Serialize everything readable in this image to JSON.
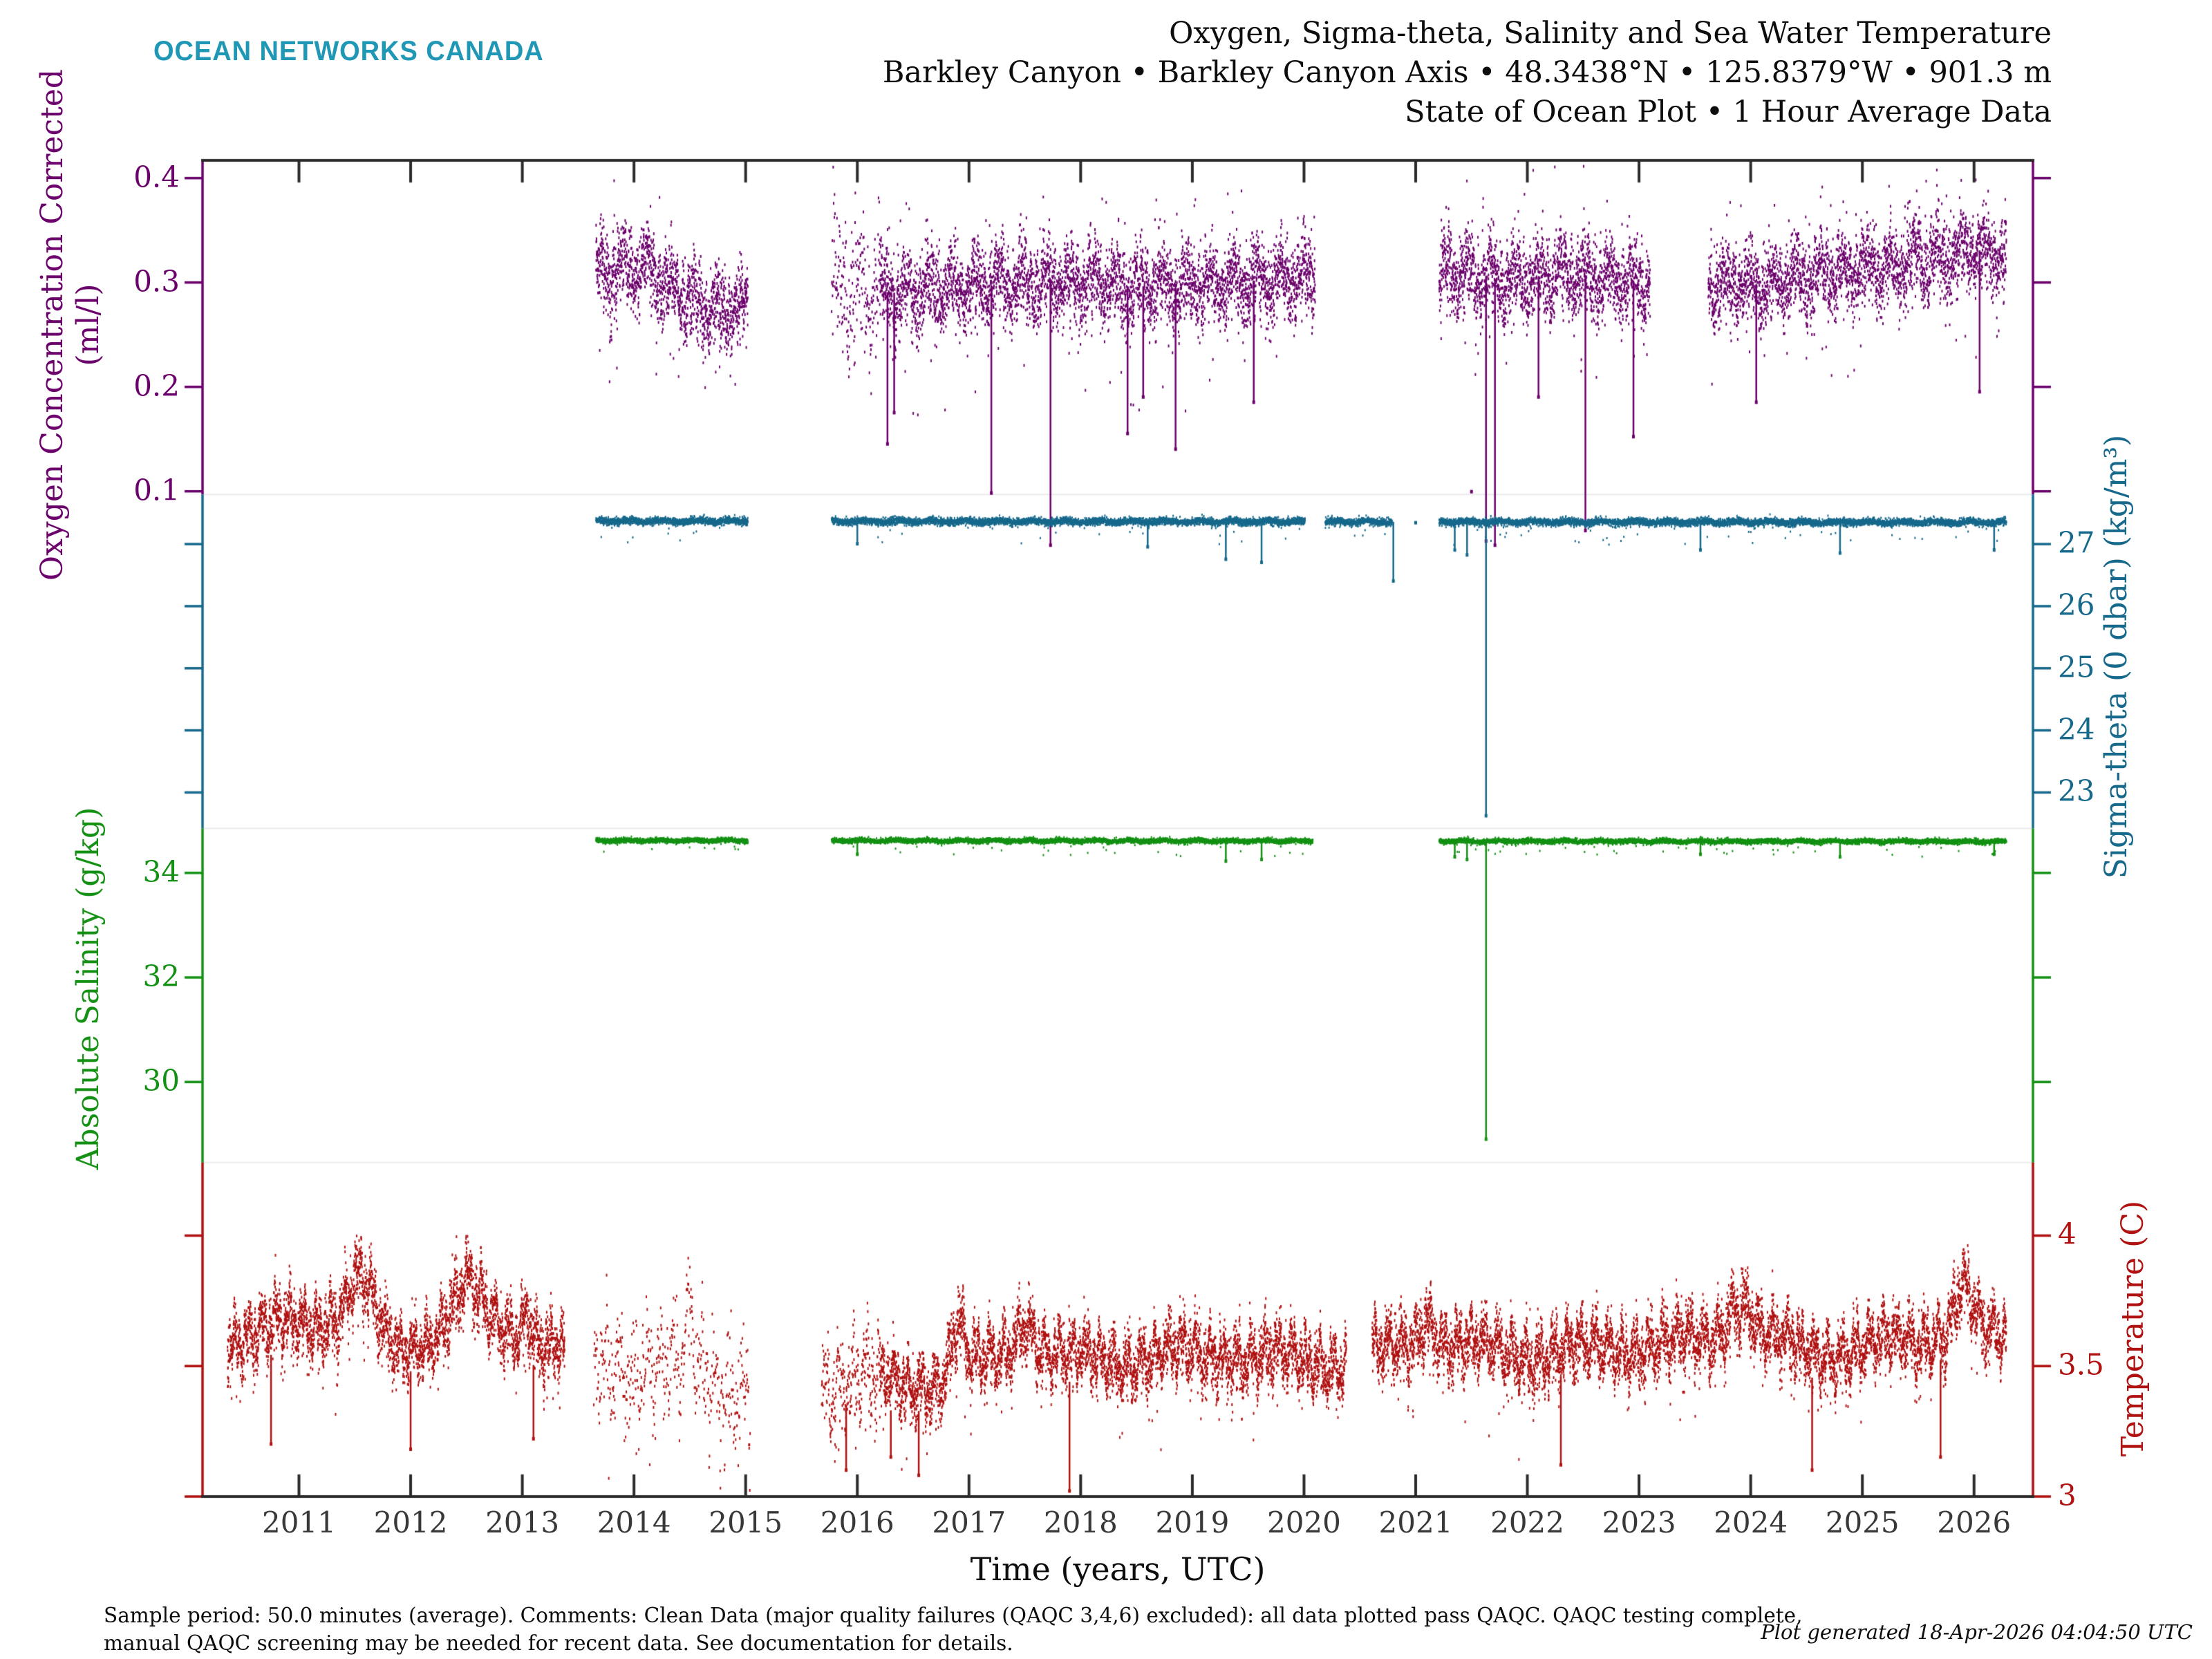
{
  "logo": "OCEAN NETWORKS CANADA",
  "title": {
    "line1": "Oxygen, Sigma-theta, Salinity and Sea Water Temperature",
    "line2": "Barkley Canyon • Barkley Canyon Axis • 48.3438°N • 125.8379°W • 901.3 m",
    "line3": "State of Ocean Plot • 1 Hour Average Data"
  },
  "footer": {
    "caption_line1": "Sample period: 50.0 minutes (average). Comments: Clean Data (major quality failures (QAQC 3,4,6) excluded): all data plotted pass QAQC. QAQC testing complete,",
    "caption_line2": "manual QAQC screening may be needed for recent data. See documentation for details.",
    "generated": "Plot generated 18-Apr-2026 04:04:50 UTC"
  },
  "chart_data": {
    "type": "scatter",
    "xlabel": "Time (years, UTC)",
    "x_ticks": [
      2011,
      2012,
      2013,
      2014,
      2015,
      2016,
      2017,
      2018,
      2019,
      2020,
      2021,
      2022,
      2023,
      2024,
      2025,
      2026
    ],
    "x_range": [
      2010.14,
      2026.52
    ],
    "grid": "section-divider-lines-only",
    "legend": "none",
    "axes": [
      {
        "name": "oxygen",
        "label": "Oxygen Concentration Corrected",
        "label2": "(ml/l)",
        "side": "left",
        "color": "#6B016B",
        "ticks": [
          0.4,
          0.3,
          0.2,
          0.1
        ],
        "top_value": 0.417,
        "bottom_value": 0.097
      },
      {
        "name": "sigma-theta",
        "label": "Sigma-theta (0 dbar) (kg/m³)",
        "label2": "",
        "side": "right",
        "color": "#17698C",
        "ticks": [
          27,
          26,
          25,
          24,
          23
        ],
        "top_value": 27.8,
        "bottom_value": 22.42
      },
      {
        "name": "salinity",
        "label": "Absolute Salinity (g/kg)",
        "label2": "",
        "side": "left",
        "color": "#149114",
        "ticks": [
          34,
          32,
          30
        ],
        "top_value": 34.85,
        "bottom_value": 28.46
      },
      {
        "name": "temperature",
        "label": "Temperature (C)",
        "label2": "",
        "side": "right",
        "color": "#B01111",
        "ticks": [
          4,
          3.5,
          3
        ],
        "top_value": 4.28,
        "bottom_value": 3.0
      }
    ],
    "series": [
      {
        "name": "oxygen_concentration_corrected",
        "axis": 0,
        "units": "ml/l",
        "color": "#6B016B",
        "segments": [
          {
            "t0": 2013.66,
            "t1": 2015.02,
            "dt": 0.0009
          },
          {
            "t0": 2015.77,
            "t1": 2016.2,
            "dt": 0.002,
            "scatter": 1.6
          },
          {
            "t0": 2016.2,
            "t1": 2020.1,
            "dt": 0.0009
          },
          {
            "t0": 2021.21,
            "t1": 2023.1,
            "dt": 0.0009
          },
          {
            "t0": 2023.62,
            "t1": 2026.29,
            "dt": 0.0009
          }
        ],
        "trend": [
          [
            2013.66,
            0.31
          ],
          [
            2014.1,
            0.316
          ],
          [
            2014.45,
            0.285
          ],
          [
            2014.75,
            0.272
          ],
          [
            2015.02,
            0.28
          ],
          [
            2015.77,
            0.3
          ],
          [
            2016.3,
            0.29
          ],
          [
            2017.0,
            0.296
          ],
          [
            2017.8,
            0.301
          ],
          [
            2018.5,
            0.296
          ],
          [
            2019.2,
            0.3
          ],
          [
            2020.1,
            0.305
          ],
          [
            2021.21,
            0.312
          ],
          [
            2021.8,
            0.302
          ],
          [
            2022.4,
            0.308
          ],
          [
            2023.1,
            0.3
          ],
          [
            2023.62,
            0.294
          ],
          [
            2024.2,
            0.3
          ],
          [
            2024.8,
            0.31
          ],
          [
            2025.4,
            0.318
          ],
          [
            2026.0,
            0.332
          ],
          [
            2026.29,
            0.325
          ]
        ],
        "osc": [
          {
            "a": 0.013,
            "p": 0.21,
            "ph": 1.2
          },
          {
            "a": 0.01,
            "p": 0.052,
            "ph": 0.4
          }
        ],
        "noise": 0.017,
        "max": 0.412,
        "tail_down": {
          "p": 0.016,
          "d": 0.1
        },
        "tail_up": {
          "p": 0.02,
          "d": 0.075
        },
        "spikes": [
          {
            "t": 2016.27,
            "v": 0.145
          },
          {
            "t": 2016.33,
            "v": 0.175
          },
          {
            "t": 2017.2,
            "v": 0.098
          },
          {
            "t": 2017.73,
            "v": 0.048
          },
          {
            "t": 2018.42,
            "v": 0.155
          },
          {
            "t": 2018.56,
            "v": 0.19
          },
          {
            "t": 2018.85,
            "v": 0.14
          },
          {
            "t": 2019.55,
            "v": 0.185
          },
          {
            "t": 2021.5,
            "v": 0.1,
            "dot": true
          },
          {
            "t": 2021.63,
            "v": 0.052
          },
          {
            "t": 2021.71,
            "v": 0.048
          },
          {
            "t": 2022.1,
            "v": 0.19
          },
          {
            "t": 2022.52,
            "v": 0.062
          },
          {
            "t": 2022.95,
            "v": 0.152
          },
          {
            "t": 2024.05,
            "v": 0.185
          },
          {
            "t": 2026.05,
            "v": 0.195
          }
        ]
      },
      {
        "name": "sigma_theta",
        "axis": 1,
        "units": "kg/m³",
        "color": "#17698C",
        "segments": [
          {
            "t0": 2013.66,
            "t1": 2015.02,
            "dt": 0.0009
          },
          {
            "t0": 2015.77,
            "t1": 2020.01,
            "dt": 0.0009
          },
          {
            "t0": 2020.19,
            "t1": 2020.79,
            "dt": 0.0009
          },
          {
            "t0": 2021.21,
            "t1": 2026.29,
            "dt": 0.0009
          }
        ],
        "trend": [
          [
            2013.66,
            27.37
          ],
          [
            2026.29,
            27.35
          ]
        ],
        "osc": [
          {
            "a": 0.015,
            "p": 0.3,
            "ph": 0.1
          }
        ],
        "noise": 0.028,
        "max": 27.55,
        "tail_down": {
          "p": 0.01,
          "d": 0.35
        },
        "spikes": [
          {
            "t": 2020.8,
            "v": 26.4
          },
          {
            "t": 2021.0,
            "v": 27.35,
            "dot": true
          },
          {
            "t": 2021.63,
            "v": 22.62
          },
          {
            "t": 2016.0,
            "v": 27.0
          },
          {
            "t": 2018.6,
            "v": 26.95
          },
          {
            "t": 2019.3,
            "v": 26.75
          },
          {
            "t": 2019.62,
            "v": 26.7
          },
          {
            "t": 2021.35,
            "v": 26.9
          },
          {
            "t": 2021.46,
            "v": 26.82
          },
          {
            "t": 2023.55,
            "v": 26.9
          },
          {
            "t": 2024.8,
            "v": 26.85
          },
          {
            "t": 2026.18,
            "v": 26.9
          }
        ]
      },
      {
        "name": "absolute_salinity",
        "axis": 2,
        "units": "g/kg",
        "color": "#149114",
        "segments": [
          {
            "t0": 2013.66,
            "t1": 2015.02,
            "dt": 0.0009
          },
          {
            "t0": 2015.77,
            "t1": 2020.08,
            "dt": 0.0009
          },
          {
            "t0": 2021.21,
            "t1": 2026.29,
            "dt": 0.0009
          }
        ],
        "trend": [
          [
            2013.66,
            34.62
          ],
          [
            2026.29,
            34.6
          ]
        ],
        "osc": [
          {
            "a": 0.012,
            "p": 0.3,
            "ph": 0.8
          }
        ],
        "noise": 0.022,
        "max": 34.78,
        "tail_down": {
          "p": 0.01,
          "d": 0.28
        },
        "spikes": [
          {
            "t": 2021.63,
            "v": 28.9
          },
          {
            "t": 2016.0,
            "v": 34.35
          },
          {
            "t": 2019.3,
            "v": 34.22
          },
          {
            "t": 2019.62,
            "v": 34.25
          },
          {
            "t": 2021.35,
            "v": 34.3
          },
          {
            "t": 2021.46,
            "v": 34.25
          },
          {
            "t": 2023.55,
            "v": 34.35
          },
          {
            "t": 2024.8,
            "v": 34.3
          },
          {
            "t": 2026.18,
            "v": 34.35
          }
        ]
      },
      {
        "name": "sea_water_temperature",
        "axis": 3,
        "units": "C",
        "color": "#B01111",
        "segments": [
          {
            "t0": 2010.36,
            "t1": 2013.38,
            "dt": 0.0008
          },
          {
            "t0": 2013.64,
            "t1": 2015.04,
            "dt": 0.0028,
            "scatter": 1.8
          },
          {
            "t0": 2015.68,
            "t1": 2016.2,
            "dt": 0.0018,
            "scatter": 1.5
          },
          {
            "t0": 2016.2,
            "t1": 2020.38,
            "dt": 0.0008
          },
          {
            "t0": 2020.61,
            "t1": 2026.29,
            "dt": 0.0008
          }
        ],
        "trend": [
          [
            2010.36,
            3.6
          ],
          [
            2010.9,
            3.66
          ],
          [
            2011.5,
            3.7
          ],
          [
            2011.9,
            3.56
          ],
          [
            2012.5,
            3.68
          ],
          [
            2013.0,
            3.62
          ],
          [
            2013.38,
            3.56
          ],
          [
            2013.64,
            3.52
          ],
          [
            2014.2,
            3.5
          ],
          [
            2014.6,
            3.45
          ],
          [
            2015.04,
            3.47
          ],
          [
            2015.68,
            3.46
          ],
          [
            2016.1,
            3.44
          ],
          [
            2016.5,
            3.42
          ],
          [
            2017.0,
            3.5
          ],
          [
            2017.6,
            3.56
          ],
          [
            2018.2,
            3.52
          ],
          [
            2018.8,
            3.55
          ],
          [
            2019.4,
            3.54
          ],
          [
            2020.38,
            3.52
          ],
          [
            2020.61,
            3.55
          ],
          [
            2021.2,
            3.6
          ],
          [
            2021.8,
            3.55
          ],
          [
            2022.4,
            3.56
          ],
          [
            2023.0,
            3.58
          ],
          [
            2023.6,
            3.6
          ],
          [
            2024.0,
            3.62
          ],
          [
            2024.6,
            3.55
          ],
          [
            2025.2,
            3.58
          ],
          [
            2025.9,
            3.64
          ],
          [
            2026.29,
            3.6
          ]
        ],
        "bumps": [
          {
            "t": 2011.55,
            "amp": 0.16,
            "w": 0.1
          },
          {
            "t": 2012.5,
            "amp": 0.13,
            "w": 0.12
          },
          {
            "t": 2013.05,
            "amp": 0.11,
            "w": 0.05
          },
          {
            "t": 2014.5,
            "amp": 0.18,
            "w": 0.04
          },
          {
            "t": 2016.9,
            "amp": 0.19,
            "w": 0.05
          },
          {
            "t": 2017.5,
            "amp": 0.13,
            "w": 0.08
          },
          {
            "t": 2021.1,
            "amp": 0.11,
            "w": 0.06
          },
          {
            "t": 2023.9,
            "amp": 0.15,
            "w": 0.1
          },
          {
            "t": 2025.9,
            "amp": 0.16,
            "w": 0.08
          }
        ],
        "osc": [
          {
            "a": 0.055,
            "p": 0.123,
            "ph": 2.1
          },
          {
            "a": 0.042,
            "p": 0.045,
            "ph": 0.7
          },
          {
            "a": 0.03,
            "p": 0.9,
            "ph": 0.2
          }
        ],
        "noise": 0.05,
        "max": 4.0,
        "min": 3.02,
        "tail_down": {
          "p": 0.02,
          "d": 0.24
        },
        "spikes": [
          {
            "t": 2010.75,
            "v": 3.2
          },
          {
            "t": 2012.0,
            "v": 3.18
          },
          {
            "t": 2013.1,
            "v": 3.22
          },
          {
            "t": 2015.9,
            "v": 3.1
          },
          {
            "t": 2016.3,
            "v": 3.15
          },
          {
            "t": 2016.55,
            "v": 3.08
          },
          {
            "t": 2017.9,
            "v": 3.02
          },
          {
            "t": 2022.3,
            "v": 3.12
          },
          {
            "t": 2024.55,
            "v": 3.1
          },
          {
            "t": 2025.7,
            "v": 3.15
          }
        ]
      }
    ]
  }
}
